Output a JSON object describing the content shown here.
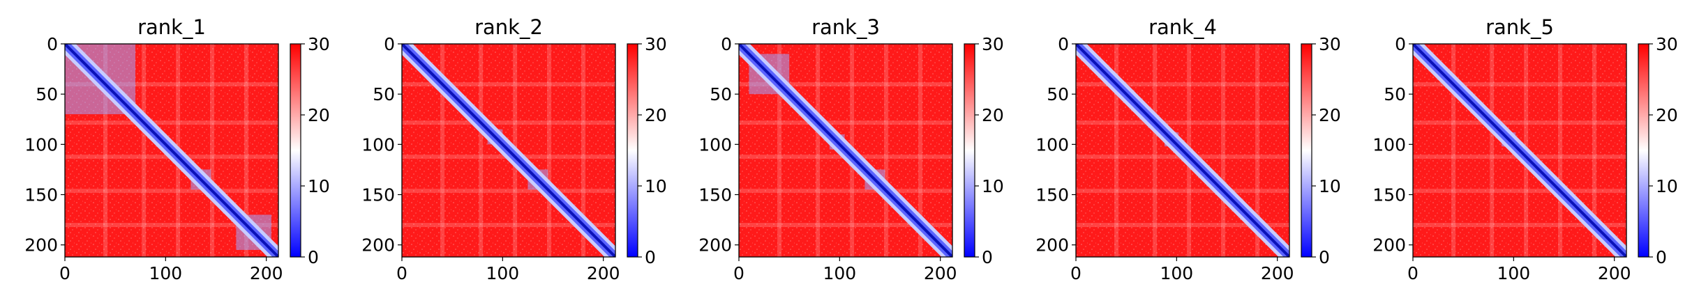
{
  "chart_data": [
    {
      "type": "heatmap",
      "title": "rank_1",
      "xticks": [
        0,
        100,
        200
      ],
      "yticks": [
        0,
        50,
        100,
        150,
        200
      ],
      "n": 212,
      "colorbar": {
        "min": 0,
        "max": 30,
        "ticks": [
          0,
          10,
          20,
          30
        ],
        "cmap": "bwr"
      },
      "blue_blocks": [
        [
          0,
          70
        ],
        [
          125,
          145
        ],
        [
          170,
          205
        ]
      ]
    },
    {
      "type": "heatmap",
      "title": "rank_2",
      "xticks": [
        0,
        100,
        200
      ],
      "yticks": [
        0,
        50,
        100,
        150,
        200
      ],
      "n": 212,
      "colorbar": {
        "min": 0,
        "max": 30,
        "ticks": [
          0,
          10,
          20,
          30
        ],
        "cmap": "bwr"
      },
      "blue_blocks": [
        [
          85,
          100
        ],
        [
          125,
          145
        ]
      ]
    },
    {
      "type": "heatmap",
      "title": "rank_3",
      "xticks": [
        0,
        100,
        200
      ],
      "yticks": [
        0,
        50,
        100,
        150,
        200
      ],
      "n": 212,
      "colorbar": {
        "min": 0,
        "max": 30,
        "ticks": [
          0,
          10,
          20,
          30
        ],
        "cmap": "bwr"
      },
      "blue_blocks": [
        [
          10,
          50
        ],
        [
          90,
          105
        ],
        [
          125,
          145
        ]
      ]
    },
    {
      "type": "heatmap",
      "title": "rank_4",
      "xticks": [
        0,
        100,
        200
      ],
      "yticks": [
        0,
        50,
        100,
        150,
        200
      ],
      "n": 212,
      "colorbar": {
        "min": 0,
        "max": 30,
        "ticks": [
          0,
          10,
          20,
          30
        ],
        "cmap": "bwr"
      },
      "blue_blocks": [
        [
          88,
          102
        ]
      ]
    },
    {
      "type": "heatmap",
      "title": "rank_5",
      "xticks": [
        0,
        100,
        200
      ],
      "yticks": [
        0,
        50,
        100,
        150,
        200
      ],
      "n": 212,
      "colorbar": {
        "min": 0,
        "max": 30,
        "ticks": [
          0,
          10,
          20,
          30
        ],
        "cmap": "bwr"
      },
      "blue_blocks": [
        [
          88,
          102
        ]
      ]
    }
  ]
}
